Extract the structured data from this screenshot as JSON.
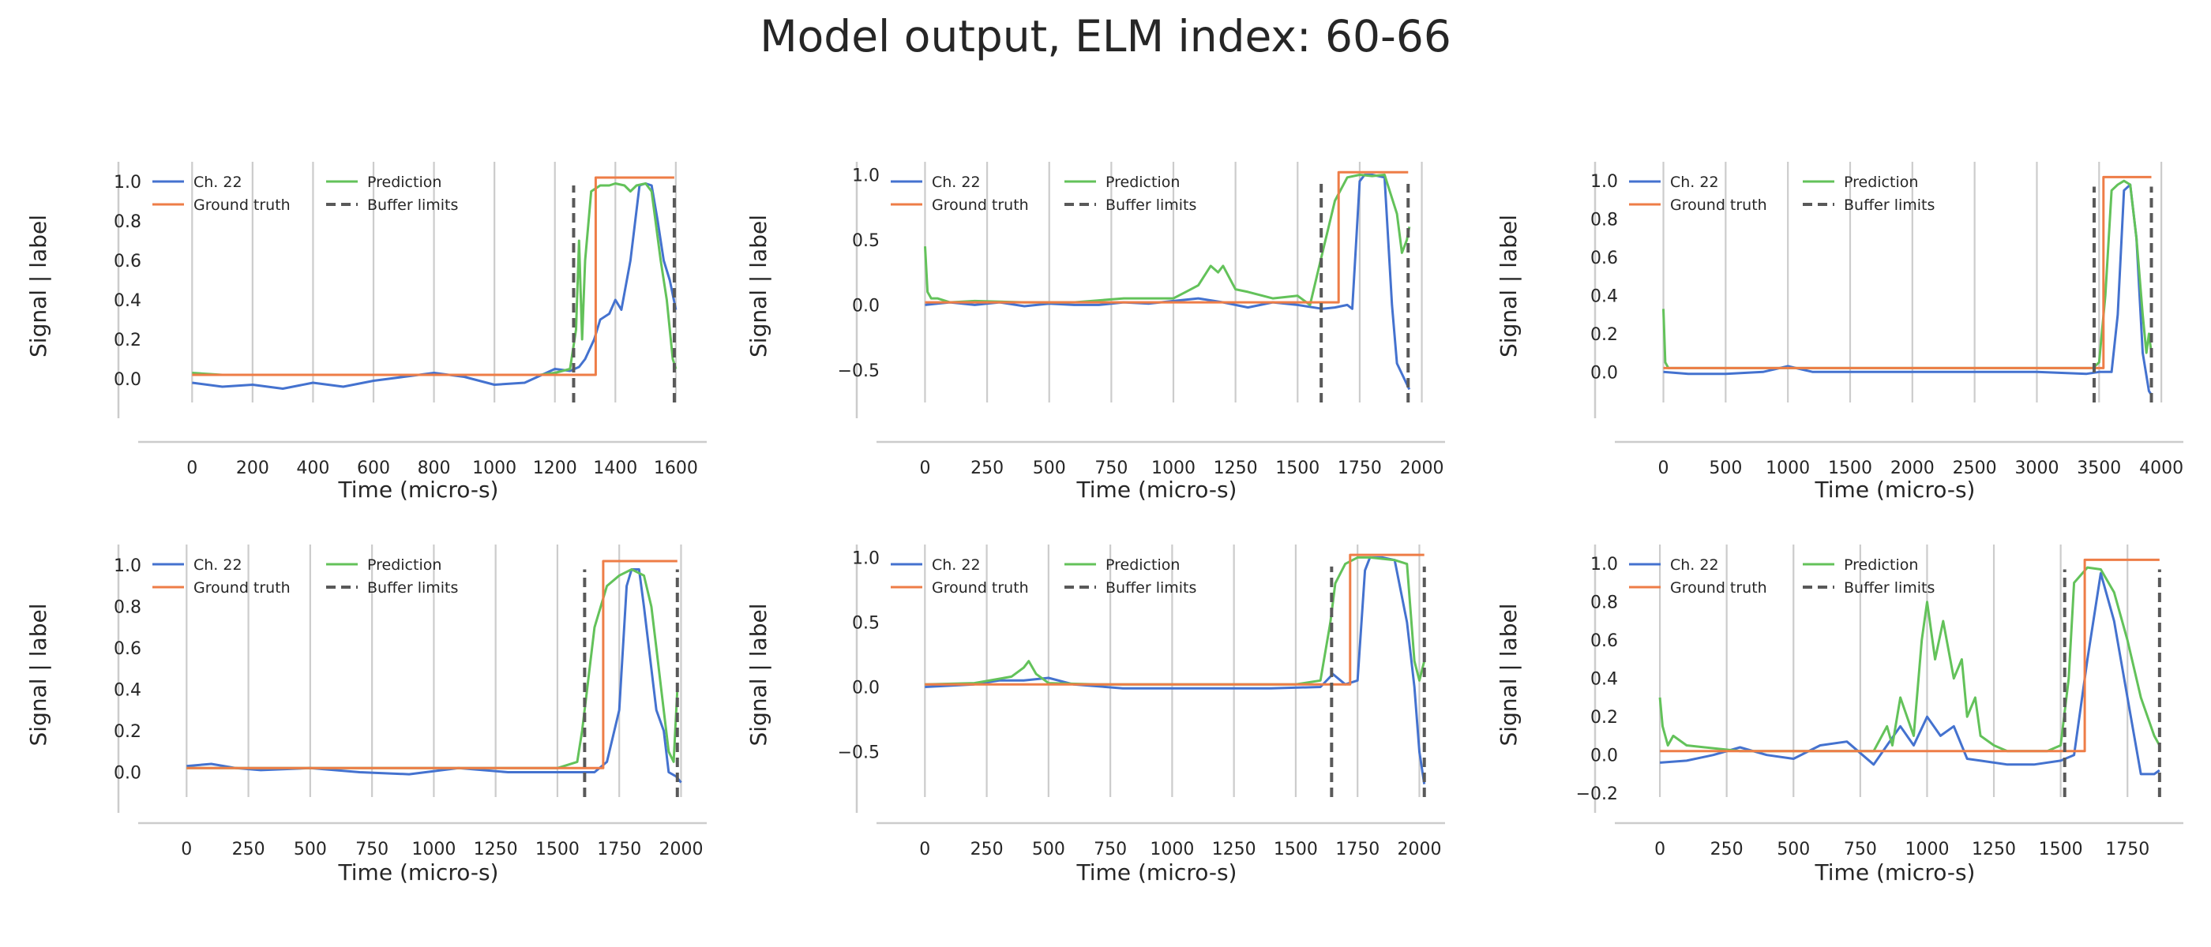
{
  "title": "Model output, ELM index: 60-66",
  "colors": {
    "signal": "#4472cf",
    "ground_truth": "#ee7d47",
    "prediction": "#63c25a",
    "buffer": "#595959",
    "grid": "#cccccc",
    "spine": "#cccccc"
  },
  "chart_data": [
    {
      "type": "line",
      "xlabel": "Time (micro-s)",
      "ylabel": "Signal | label",
      "xlim": [
        -100,
        1650
      ],
      "ylim": [
        -0.12,
        1.1
      ],
      "xticks": [
        0,
        200,
        400,
        600,
        800,
        1000,
        1200,
        1400,
        1600
      ],
      "yticks": [
        0.0,
        0.2,
        0.4,
        0.6,
        0.8,
        1.0
      ],
      "ytick_labels": [
        "0.0",
        "0.2",
        "0.4",
        "0.6",
        "0.8",
        "1.0"
      ],
      "grid": "vertical",
      "legend": {
        "placement": "top-left",
        "columns": 2,
        "entries": [
          "Ch. 22",
          "Ground truth",
          "Prediction",
          "Buffer limits"
        ]
      },
      "ground_truth": {
        "x": [
          0,
          1335,
          1335,
          1595
        ],
        "y": [
          0.02,
          0.02,
          1.02,
          1.02
        ]
      },
      "buffer_limits": {
        "x": [
          1262,
          1595
        ],
        "y": [
          -0.12,
          0.98
        ]
      },
      "series": [
        {
          "name": "Ch. 22",
          "x": [
            0,
            100,
            200,
            300,
            400,
            500,
            600,
            700,
            800,
            900,
            1000,
            1100,
            1200,
            1250,
            1280,
            1300,
            1330,
            1350,
            1380,
            1400,
            1420,
            1450,
            1480,
            1500,
            1520,
            1540,
            1560,
            1580,
            1600
          ],
          "y": [
            -0.02,
            -0.04,
            -0.03,
            -0.05,
            -0.02,
            -0.04,
            -0.01,
            0.01,
            0.03,
            0.01,
            -0.03,
            -0.02,
            0.05,
            0.04,
            0.06,
            0.1,
            0.2,
            0.3,
            0.33,
            0.4,
            0.35,
            0.6,
            0.98,
            0.99,
            0.98,
            0.8,
            0.6,
            0.5,
            0.35
          ]
        },
        {
          "name": "Prediction",
          "x": [
            0,
            100,
            300,
            500,
            800,
            1000,
            1150,
            1200,
            1250,
            1270,
            1280,
            1290,
            1300,
            1320,
            1350,
            1380,
            1400,
            1430,
            1450,
            1470,
            1500,
            1520,
            1550,
            1570,
            1590,
            1600
          ],
          "y": [
            0.03,
            0.02,
            0.02,
            0.02,
            0.02,
            0.02,
            0.02,
            0.03,
            0.05,
            0.25,
            0.7,
            0.2,
            0.6,
            0.95,
            0.98,
            0.98,
            0.99,
            0.98,
            0.95,
            0.98,
            0.99,
            0.95,
            0.6,
            0.4,
            0.1,
            0.05
          ]
        }
      ]
    },
    {
      "type": "line",
      "xlabel": "Time (micro-s)",
      "ylabel": "Signal | label",
      "xlim": [
        -100,
        2030
      ],
      "ylim": [
        -0.75,
        1.1
      ],
      "xticks": [
        0,
        250,
        500,
        750,
        1000,
        1250,
        1500,
        1750,
        2000
      ],
      "yticks": [
        -0.5,
        0.0,
        0.5,
        1.0
      ],
      "ytick_labels": [
        "−0.5",
        "0.0",
        "0.5",
        "1.0"
      ],
      "grid": "vertical",
      "legend": {
        "placement": "top-left",
        "columns": 2,
        "entries": [
          "Ch. 22",
          "Ground truth",
          "Prediction",
          "Buffer limits"
        ]
      },
      "ground_truth": {
        "x": [
          0,
          1665,
          1665,
          1945
        ],
        "y": [
          0.02,
          0.02,
          1.02,
          1.02
        ]
      },
      "buffer_limits": {
        "x": [
          1595,
          1945
        ],
        "y": [
          -0.75,
          0.93
        ]
      },
      "series": [
        {
          "name": "Ch. 22",
          "x": [
            0,
            100,
            200,
            300,
            400,
            500,
            600,
            700,
            800,
            900,
            1000,
            1100,
            1200,
            1300,
            1400,
            1500,
            1600,
            1650,
            1700,
            1720,
            1750,
            1770,
            1800,
            1850,
            1880,
            1900,
            1950
          ],
          "y": [
            0.0,
            0.02,
            0.0,
            0.02,
            -0.01,
            0.01,
            0.0,
            0.0,
            0.02,
            0.01,
            0.03,
            0.05,
            0.02,
            -0.02,
            0.02,
            0.0,
            -0.03,
            -0.02,
            0.0,
            -0.03,
            0.95,
            1.0,
            1.0,
            0.98,
            0.0,
            -0.45,
            -0.65
          ]
        },
        {
          "name": "Prediction",
          "x": [
            0,
            10,
            25,
            50,
            100,
            200,
            400,
            600,
            800,
            1000,
            1050,
            1100,
            1150,
            1180,
            1200,
            1250,
            1300,
            1400,
            1500,
            1550,
            1600,
            1650,
            1700,
            1750,
            1800,
            1850,
            1900,
            1920,
            1940,
            1950
          ],
          "y": [
            0.45,
            0.1,
            0.05,
            0.05,
            0.02,
            0.03,
            0.02,
            0.02,
            0.05,
            0.05,
            0.1,
            0.15,
            0.3,
            0.25,
            0.3,
            0.12,
            0.1,
            0.05,
            0.07,
            0.0,
            0.4,
            0.8,
            0.98,
            1.0,
            0.99,
            1.0,
            0.7,
            0.4,
            0.5,
            0.6
          ]
        }
      ]
    },
    {
      "type": "line",
      "xlabel": "Time (micro-s)",
      "ylabel": "Signal | label",
      "xlim": [
        -200,
        4050
      ],
      "ylim": [
        -0.16,
        1.1
      ],
      "xticks": [
        0,
        500,
        1000,
        1500,
        2000,
        2500,
        3000,
        3500,
        4000
      ],
      "yticks": [
        0.0,
        0.2,
        0.4,
        0.6,
        0.8,
        1.0
      ],
      "ytick_labels": [
        "0.0",
        "0.2",
        "0.4",
        "0.6",
        "0.8",
        "1.0"
      ],
      "grid": "vertical",
      "legend": {
        "placement": "top-left",
        "columns": 2,
        "entries": [
          "Ch. 22",
          "Ground truth",
          "Prediction",
          "Buffer limits"
        ]
      },
      "ground_truth": {
        "x": [
          0,
          3535,
          3535,
          3920
        ],
        "y": [
          0.02,
          0.02,
          1.02,
          1.02
        ]
      },
      "buffer_limits": {
        "x": [
          3460,
          3920
        ],
        "y": [
          -0.16,
          0.97
        ]
      },
      "series": [
        {
          "name": "Ch. 22",
          "x": [
            0,
            200,
            500,
            800,
            1000,
            1200,
            1500,
            2000,
            2500,
            3000,
            3400,
            3500,
            3600,
            3650,
            3700,
            3750,
            3800,
            3850,
            3900,
            3920
          ],
          "y": [
            0.0,
            -0.01,
            -0.01,
            0.0,
            0.03,
            0.0,
            0.0,
            0.0,
            0.0,
            0.0,
            -0.01,
            0.0,
            0.0,
            0.3,
            0.95,
            0.98,
            0.7,
            0.1,
            -0.1,
            -0.12
          ]
        },
        {
          "name": "Prediction",
          "x": [
            0,
            15,
            40,
            100,
            500,
            1000,
            2000,
            3000,
            3450,
            3500,
            3550,
            3600,
            3650,
            3700,
            3750,
            3800,
            3850,
            3880,
            3900,
            3920
          ],
          "y": [
            0.33,
            0.05,
            0.02,
            0.02,
            0.02,
            0.02,
            0.02,
            0.02,
            0.02,
            0.05,
            0.4,
            0.95,
            0.98,
            1.0,
            0.98,
            0.7,
            0.3,
            0.1,
            0.2,
            0.1
          ]
        }
      ]
    },
    {
      "type": "line",
      "xlabel": "Time (micro-s)",
      "ylabel": "Signal | label",
      "xlim": [
        -100,
        2040
      ],
      "ylim": [
        -0.12,
        1.1
      ],
      "xticks": [
        0,
        250,
        500,
        750,
        1000,
        1250,
        1500,
        1750,
        2000
      ],
      "yticks": [
        0.0,
        0.2,
        0.4,
        0.6,
        0.8,
        1.0
      ],
      "ytick_labels": [
        "0.0",
        "0.2",
        "0.4",
        "0.6",
        "0.8",
        "1.0"
      ],
      "grid": "vertical",
      "legend": {
        "placement": "top-left",
        "columns": 2,
        "entries": [
          "Ch. 22",
          "Ground truth",
          "Prediction",
          "Buffer limits"
        ]
      },
      "ground_truth": {
        "x": [
          0,
          1685,
          1685,
          1985
        ],
        "y": [
          0.02,
          0.02,
          1.02,
          1.02
        ]
      },
      "buffer_limits": {
        "x": [
          1610,
          1985
        ],
        "y": [
          -0.12,
          0.98
        ]
      },
      "series": [
        {
          "name": "Ch. 22",
          "x": [
            0,
            100,
            200,
            300,
            500,
            700,
            900,
            1100,
            1300,
            1500,
            1600,
            1650,
            1700,
            1750,
            1780,
            1800,
            1830,
            1850,
            1880,
            1900,
            1930,
            1950,
            1980,
            2000
          ],
          "y": [
            0.03,
            0.04,
            0.02,
            0.01,
            0.02,
            0.0,
            -0.01,
            0.02,
            0.0,
            0.0,
            0.0,
            0.0,
            0.05,
            0.3,
            0.9,
            0.98,
            0.98,
            0.8,
            0.5,
            0.3,
            0.2,
            0.0,
            -0.02,
            -0.05
          ]
        },
        {
          "name": "Prediction",
          "x": [
            0,
            200,
            500,
            1000,
            1500,
            1580,
            1600,
            1620,
            1650,
            1700,
            1750,
            1800,
            1850,
            1880,
            1900,
            1920,
            1950,
            1970,
            1985
          ],
          "y": [
            0.02,
            0.02,
            0.02,
            0.02,
            0.02,
            0.05,
            0.2,
            0.4,
            0.7,
            0.9,
            0.95,
            0.98,
            0.95,
            0.8,
            0.6,
            0.4,
            0.1,
            0.05,
            0.4
          ]
        }
      ]
    },
    {
      "type": "line",
      "xlabel": "Time (micro-s)",
      "ylabel": "Signal | label",
      "xlim": [
        -100,
        2040
      ],
      "ylim": [
        -0.85,
        1.1
      ],
      "xticks": [
        0,
        250,
        500,
        750,
        1000,
        1250,
        1500,
        1750,
        2000
      ],
      "yticks": [
        -0.5,
        0.0,
        0.5,
        1.0
      ],
      "ytick_labels": [
        "−0.5",
        "0.0",
        "0.5",
        "1.0"
      ],
      "grid": "vertical",
      "legend": {
        "placement": "top-left",
        "columns": 2,
        "entries": [
          "Ch. 22",
          "Ground truth",
          "Prediction",
          "Buffer limits"
        ]
      },
      "ground_truth": {
        "x": [
          0,
          1720,
          1720,
          2020
        ],
        "y": [
          0.02,
          0.02,
          1.02,
          1.02
        ]
      },
      "buffer_limits": {
        "x": [
          1645,
          2020
        ],
        "y": [
          -0.85,
          0.93
        ]
      },
      "series": [
        {
          "name": "Ch. 22",
          "x": [
            0,
            200,
            300,
            400,
            500,
            600,
            800,
            1000,
            1200,
            1400,
            1600,
            1650,
            1700,
            1750,
            1780,
            1800,
            1850,
            1900,
            1950,
            1980,
            2000,
            2020
          ],
          "y": [
            0.0,
            0.02,
            0.05,
            0.05,
            0.07,
            0.02,
            -0.01,
            -0.01,
            -0.01,
            -0.01,
            0.0,
            0.1,
            0.02,
            0.05,
            0.9,
            1.0,
            1.0,
            0.98,
            0.5,
            0.0,
            -0.5,
            -0.75
          ]
        },
        {
          "name": "Prediction",
          "x": [
            0,
            200,
            350,
            400,
            420,
            450,
            500,
            700,
            1000,
            1500,
            1600,
            1640,
            1660,
            1700,
            1750,
            1800,
            1900,
            1950,
            1980,
            2000,
            2020
          ],
          "y": [
            0.02,
            0.03,
            0.08,
            0.15,
            0.2,
            0.1,
            0.03,
            0.02,
            0.02,
            0.02,
            0.05,
            0.5,
            0.8,
            0.95,
            1.0,
            1.0,
            0.98,
            0.95,
            0.2,
            0.05,
            0.2
          ]
        }
      ]
    },
    {
      "type": "line",
      "xlabel": "Time (micro-s)",
      "ylabel": "Signal | label",
      "xlim": [
        -80,
        1900
      ],
      "ylim": [
        -0.22,
        1.1
      ],
      "xticks": [
        0,
        250,
        500,
        750,
        1000,
        1250,
        1500,
        1750
      ],
      "yticks": [
        -0.2,
        0.0,
        0.2,
        0.4,
        0.6,
        0.8,
        1.0
      ],
      "ytick_labels": [
        "−0.2",
        "0.0",
        "0.2",
        "0.4",
        "0.6",
        "0.8",
        "1.0"
      ],
      "grid": "vertical",
      "legend": {
        "placement": "top-left",
        "columns": 2,
        "entries": [
          "Ch. 22",
          "Ground truth",
          "Prediction",
          "Buffer limits"
        ]
      },
      "ground_truth": {
        "x": [
          0,
          1590,
          1590,
          1870
        ],
        "y": [
          0.02,
          0.02,
          1.02,
          1.02
        ]
      },
      "buffer_limits": {
        "x": [
          1515,
          1870
        ],
        "y": [
          -0.22,
          0.97
        ]
      },
      "series": [
        {
          "name": "Ch. 22",
          "x": [
            0,
            100,
            200,
            300,
            400,
            500,
            600,
            700,
            800,
            850,
            900,
            950,
            1000,
            1050,
            1100,
            1150,
            1200,
            1300,
            1400,
            1500,
            1550,
            1600,
            1650,
            1700,
            1750,
            1800,
            1850,
            1870
          ],
          "y": [
            -0.04,
            -0.03,
            0.0,
            0.04,
            0.0,
            -0.02,
            0.05,
            0.07,
            -0.05,
            0.05,
            0.15,
            0.05,
            0.2,
            0.1,
            0.15,
            -0.02,
            -0.03,
            -0.05,
            -0.05,
            -0.03,
            0.0,
            0.5,
            0.95,
            0.7,
            0.3,
            -0.1,
            -0.1,
            -0.08
          ]
        },
        {
          "name": "Prediction",
          "x": [
            0,
            10,
            30,
            50,
            100,
            300,
            500,
            700,
            800,
            850,
            870,
            900,
            950,
            980,
            1000,
            1030,
            1060,
            1100,
            1130,
            1150,
            1180,
            1200,
            1250,
            1300,
            1400,
            1450,
            1500,
            1530,
            1550,
            1600,
            1650,
            1700,
            1750,
            1800,
            1850,
            1870
          ],
          "y": [
            0.3,
            0.15,
            0.05,
            0.1,
            0.05,
            0.02,
            0.02,
            0.02,
            0.02,
            0.15,
            0.05,
            0.3,
            0.1,
            0.6,
            0.8,
            0.5,
            0.7,
            0.4,
            0.5,
            0.2,
            0.3,
            0.1,
            0.05,
            0.02,
            0.02,
            0.02,
            0.05,
            0.4,
            0.9,
            0.98,
            0.97,
            0.85,
            0.6,
            0.3,
            0.1,
            0.05
          ]
        }
      ]
    }
  ]
}
